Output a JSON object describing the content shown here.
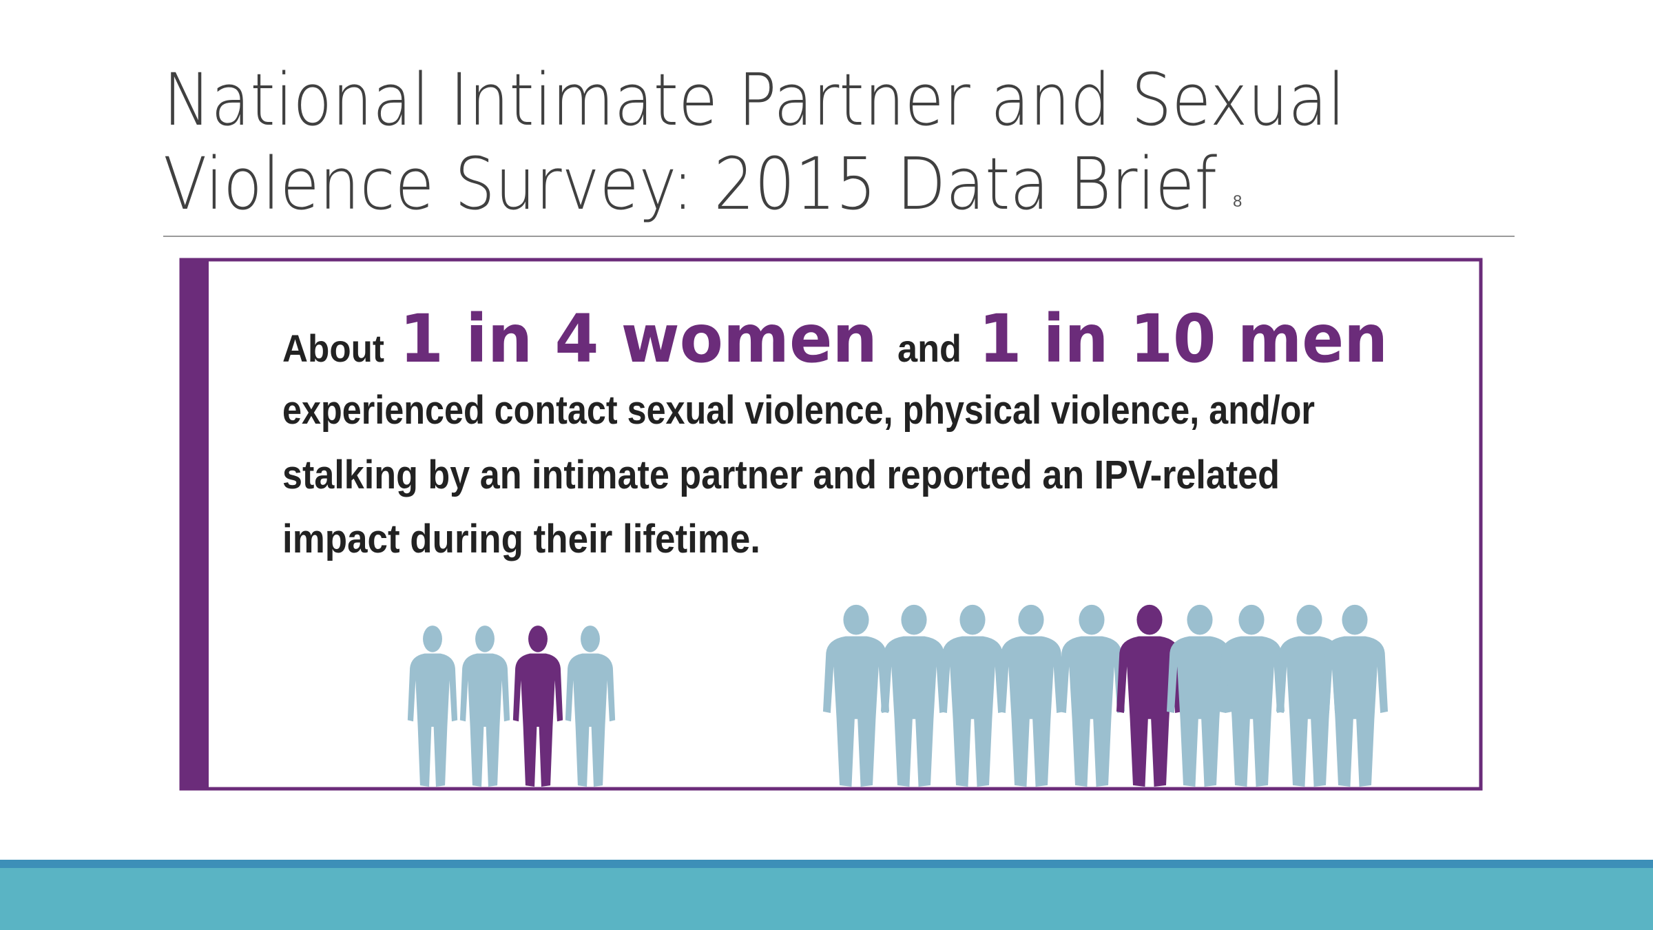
{
  "slide": {
    "title_lines": [
      "National Intimate Partner and Sexual",
      "Violence Survey: 2015 Data Brief"
    ],
    "footnote": "8"
  },
  "infographic": {
    "intro": "About",
    "women_stat": "1 in 4 women",
    "conjunction": "and",
    "men_stat": "1 in 10 men",
    "body_lines": [
      "experienced contact sexual violence, physical violence, and/or",
      "stalking by an intimate partner and reported an IPV-related",
      "impact during their lifetime."
    ]
  }
}
